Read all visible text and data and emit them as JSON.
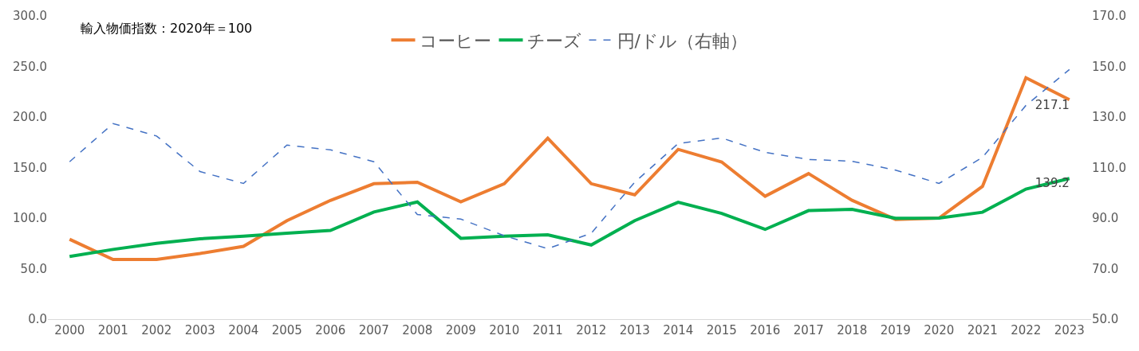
{
  "chart_data": {
    "type": "line",
    "categories": [
      "2000",
      "2001",
      "2002",
      "2003",
      "2004",
      "2005",
      "2006",
      "2007",
      "2008",
      "2009",
      "2010",
      "2011",
      "2012",
      "2013",
      "2014",
      "2015",
      "2016",
      "2017",
      "2018",
      "2019",
      "2020",
      "2021",
      "2022",
      "2023"
    ],
    "series": [
      {
        "name": "コーヒー",
        "color": "#ed7d31",
        "line_style": "solid",
        "values": [
          79,
          59,
          59,
          65,
          72,
          97.5,
          117.5,
          134,
          135.5,
          116,
          134,
          179,
          134,
          123,
          168,
          155.5,
          121.6,
          144,
          117.6,
          98.7,
          100,
          131.4,
          238.8,
          217.1
        ],
        "value_labels": [
          null,
          null,
          null,
          null,
          null,
          null,
          null,
          null,
          null,
          null,
          null,
          null,
          null,
          null,
          null,
          null,
          null,
          null,
          null,
          null,
          null,
          null,
          null,
          "217.1"
        ]
      },
      {
        "name": "チーズ",
        "color": "#00b050",
        "line_style": "solid",
        "values": [
          62,
          69,
          75,
          79.5,
          82,
          85,
          87.7,
          106,
          116,
          80,
          82,
          83.5,
          73.4,
          97.5,
          115.7,
          104.6,
          88.8,
          107.4,
          108.6,
          99.9,
          100,
          105.8,
          128.7,
          139.2
        ],
        "value_labels": [
          null,
          null,
          null,
          null,
          null,
          null,
          null,
          null,
          null,
          null,
          null,
          null,
          null,
          null,
          null,
          null,
          null,
          null,
          null,
          null,
          null,
          null,
          null,
          "139.2"
        ]
      },
      {
        "name": "円/ドル（右軸）",
        "color": "#4472c4",
        "line_style": "dashed",
        "axis": "y2",
        "values": [
          112.3,
          127.4,
          122.5,
          108.4,
          103.7,
          118.9,
          117,
          112.3,
          91.4,
          89.6,
          83,
          77.9,
          84,
          104.2,
          119.5,
          121.7,
          116,
          113.2,
          112.5,
          109,
          103.7,
          114,
          134.6,
          148.8
        ]
      }
    ],
    "ylim": [
      0,
      300
    ],
    "yticks": [
      {
        "value": 0,
        "label": "0.0"
      },
      {
        "value": 50,
        "label": "50.0"
      },
      {
        "value": 100,
        "label": "100.0"
      },
      {
        "value": 150,
        "label": "150.0"
      },
      {
        "value": 200,
        "label": "200.0"
      },
      {
        "value": 250,
        "label": "250.0"
      },
      {
        "value": 300,
        "label": "300.0"
      }
    ],
    "y2lim": [
      50,
      170
    ],
    "y2ticks": [
      {
        "value": 50,
        "label": "50.0"
      },
      {
        "value": 70,
        "label": "70.0"
      },
      {
        "value": 90,
        "label": "90.0"
      },
      {
        "value": 110,
        "label": "110.0"
      },
      {
        "value": 130,
        "label": "130.0"
      },
      {
        "value": 150,
        "label": "150.0"
      },
      {
        "value": 170,
        "label": "170.0"
      }
    ],
    "annotations": [
      "輸入物価指数：2020年＝100"
    ],
    "legend": "top",
    "marker": "none"
  }
}
